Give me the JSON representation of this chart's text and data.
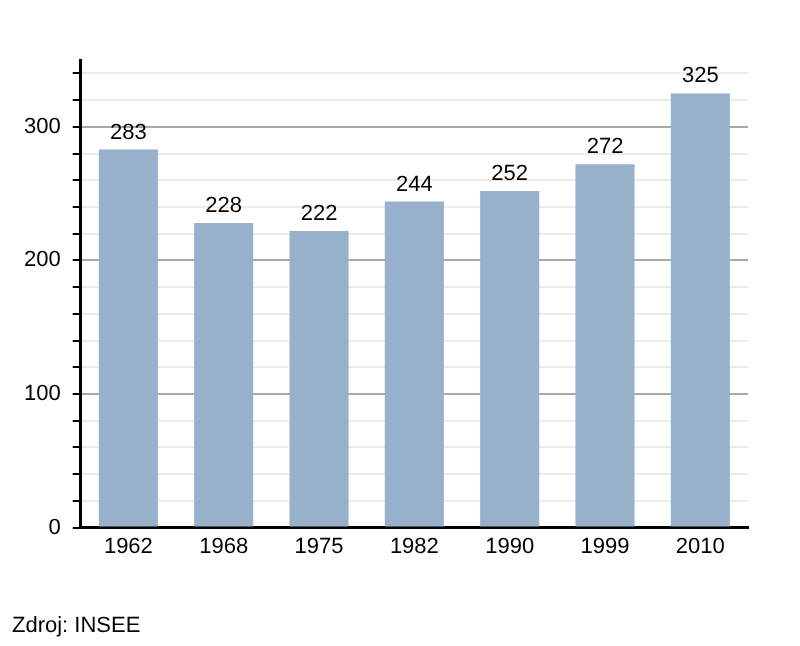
{
  "chart_data": {
    "type": "bar",
    "categories": [
      "1962",
      "1968",
      "1975",
      "1982",
      "1990",
      "1999",
      "2010"
    ],
    "values": [
      283,
      228,
      222,
      244,
      252,
      272,
      325
    ],
    "color": "#98b1cb",
    "data_labels": true,
    "ylim": [
      0,
      350
    ],
    "yticks": [
      0,
      {
        "value": 20,
        "label": null
      },
      {
        "value": 40,
        "label": null
      },
      {
        "value": 60,
        "label": null
      },
      {
        "value": 80,
        "label": null
      },
      100,
      {
        "value": 120,
        "label": null
      },
      {
        "value": 140,
        "label": null
      },
      {
        "value": 160,
        "label": null
      },
      {
        "value": 180,
        "label": null
      },
      200,
      {
        "value": 220,
        "label": null
      },
      {
        "value": 240,
        "label": null
      },
      {
        "value": 260,
        "label": null
      },
      {
        "value": 280,
        "label": null
      },
      300,
      {
        "value": 320,
        "label": null
      },
      {
        "value": 340,
        "label": null
      }
    ],
    "grid": "y",
    "annotations": [
      "Zdroj: INSEE"
    ]
  }
}
